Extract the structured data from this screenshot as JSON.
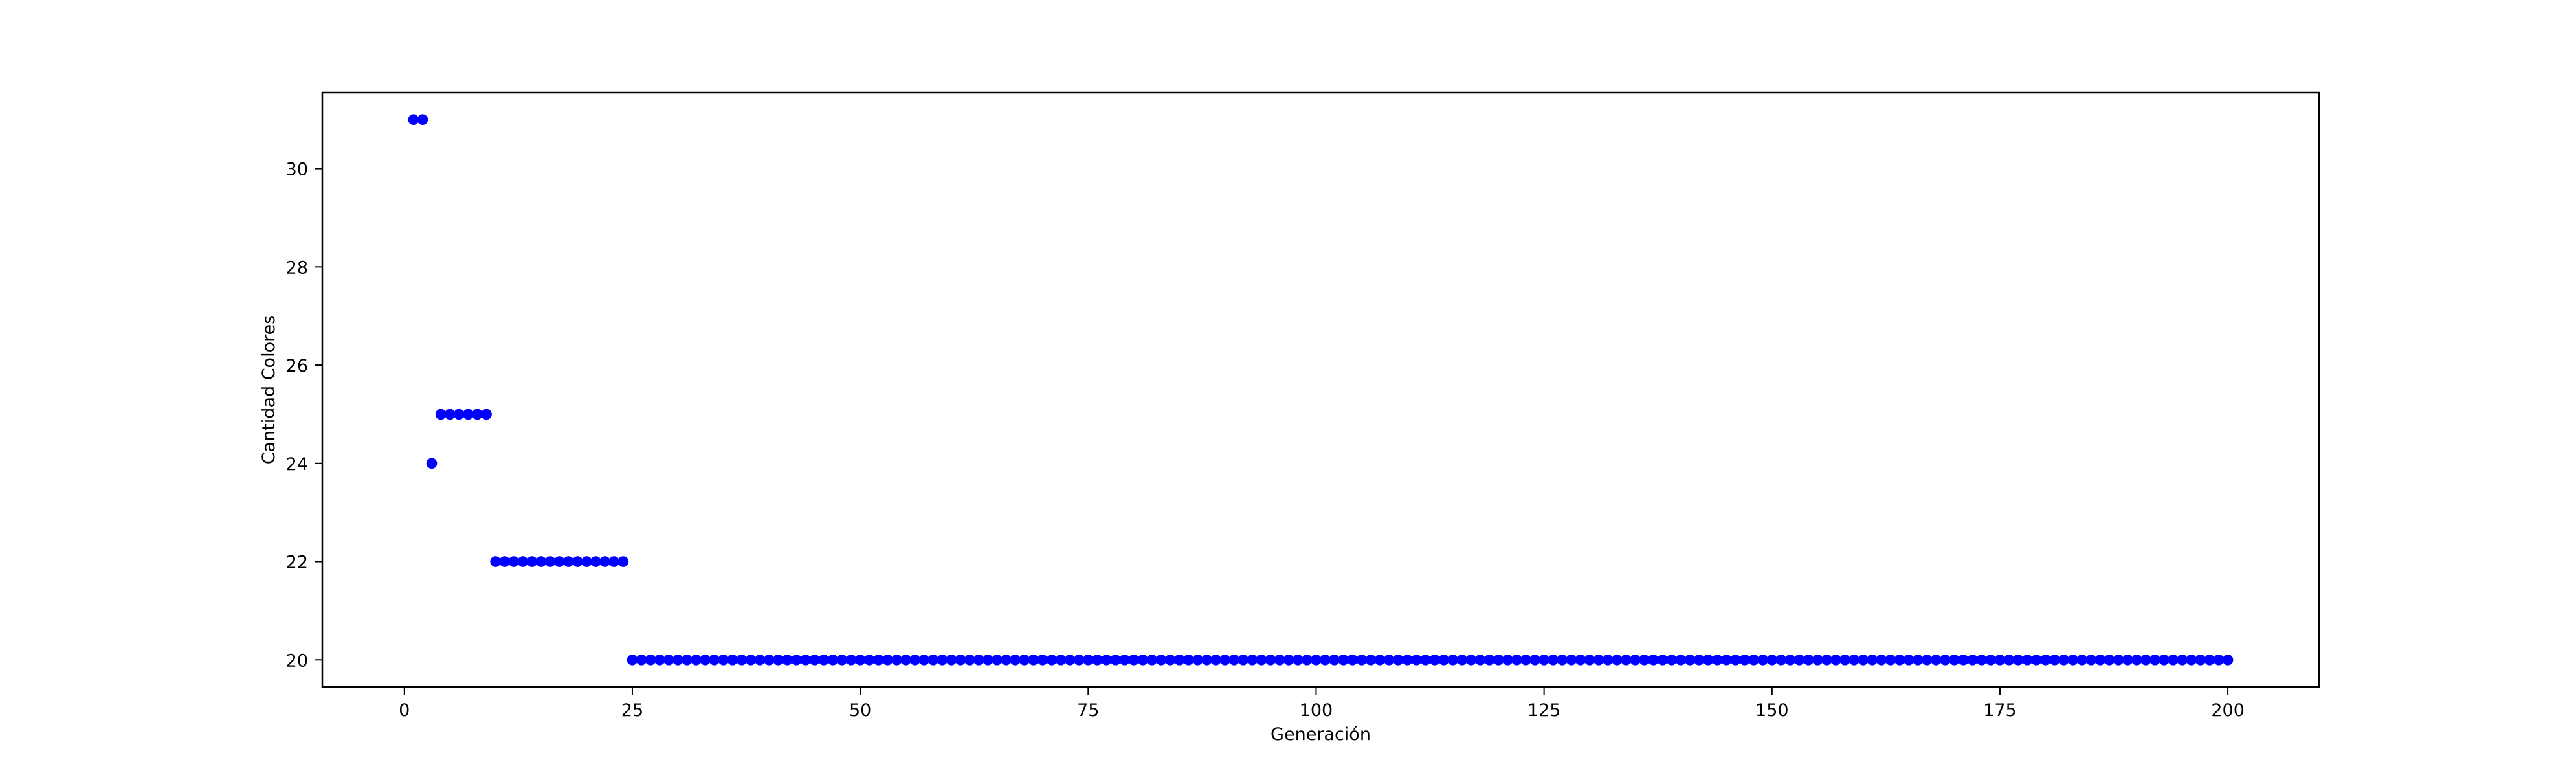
{
  "chart_data": {
    "type": "scatter",
    "title": "",
    "xlabel": "Generación",
    "ylabel": "Cantidad Colores",
    "xlim": [
      -9,
      210
    ],
    "ylim": [
      19.45,
      31.55
    ],
    "x_ticks": [
      0,
      25,
      50,
      75,
      100,
      125,
      150,
      175,
      200
    ],
    "x_tick_labels": [
      "0",
      "25",
      "50",
      "75",
      "100",
      "125",
      "150",
      "175",
      "200"
    ],
    "y_ticks": [
      20,
      22,
      24,
      26,
      28,
      30
    ],
    "y_tick_labels": [
      "20",
      "22",
      "24",
      "26",
      "28",
      "30"
    ],
    "grid": false,
    "legend": "none",
    "marker_color": "#0000ff",
    "segments": [
      {
        "x_start": 1,
        "x_end": 2,
        "y": 31
      },
      {
        "x_start": 3,
        "x_end": 3,
        "y": 24
      },
      {
        "x_start": 4,
        "x_end": 9,
        "y": 25
      },
      {
        "x_start": 10,
        "x_end": 24,
        "y": 22
      },
      {
        "x_start": 25,
        "x_end": 200,
        "y": 20
      }
    ]
  }
}
